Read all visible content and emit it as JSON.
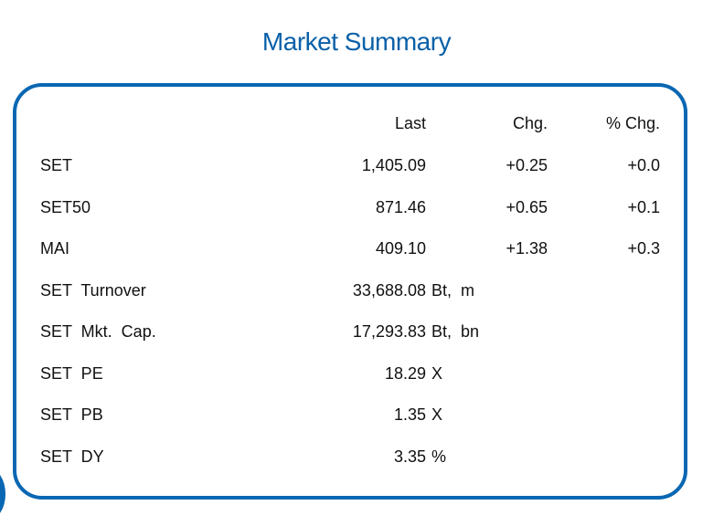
{
  "title": "Market Summary",
  "columns": {
    "last": "Last",
    "chg": "Chg.",
    "pct_chg": "% Chg."
  },
  "rows": [
    {
      "label": "SET",
      "last": "1,405.09",
      "unit": "",
      "chg": "+0.25",
      "pct_chg": "+0.0"
    },
    {
      "label": "SET50",
      "last": "871.46",
      "unit": "",
      "chg": "+0.65",
      "pct_chg": "+0.1"
    },
    {
      "label": "MAI",
      "last": "409.10",
      "unit": "",
      "chg": "+1.38",
      "pct_chg": "+0.3"
    },
    {
      "label": "SET  Turnover",
      "last": "33,688.08",
      "unit": "Bt,  m",
      "chg": "",
      "pct_chg": ""
    },
    {
      "label": "SET  Mkt.  Cap.",
      "last": "17,293.83",
      "unit": "Bt,  bn",
      "chg": "",
      "pct_chg": ""
    },
    {
      "label": "SET  PE",
      "last": "18.29",
      "unit": "X",
      "chg": "",
      "pct_chg": ""
    },
    {
      "label": "SET  PB",
      "last": "1.35",
      "unit": "X",
      "chg": "",
      "pct_chg": ""
    },
    {
      "label": "SET  DY",
      "last": "3.35",
      "unit": "%",
      "chg": "",
      "pct_chg": ""
    }
  ],
  "colors": {
    "accent": "#0a67b3",
    "title": "#0a60a8"
  }
}
